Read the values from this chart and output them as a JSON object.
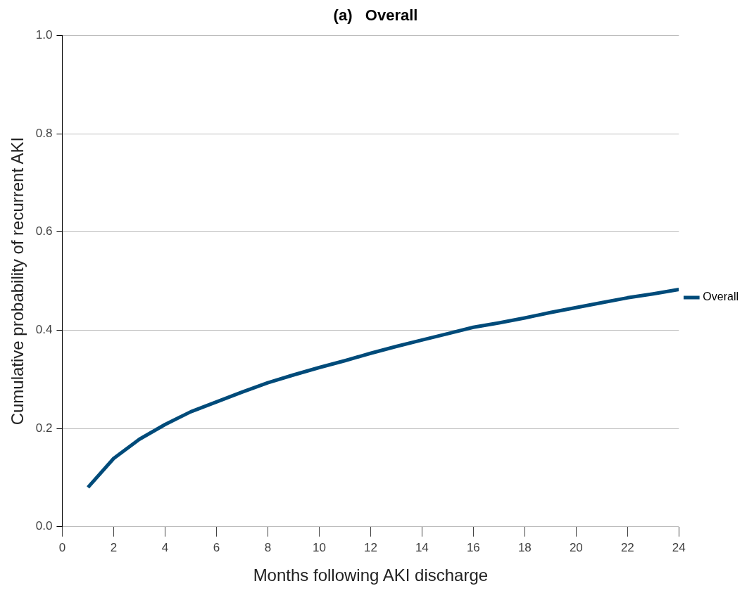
{
  "chart_data": {
    "type": "line",
    "title": "(a)   Overall",
    "xlabel": "Months following AKI discharge",
    "ylabel": "Cumulative probability of recurrent AKI",
    "x": [
      1,
      2,
      3,
      4,
      5,
      6,
      7,
      8,
      9,
      10,
      11,
      12,
      13,
      14,
      15,
      16,
      17,
      18,
      19,
      20,
      21,
      22,
      23,
      24
    ],
    "series": [
      {
        "name": "Overall",
        "color": "#004b7a",
        "values": [
          0.08,
          0.139,
          0.178,
          0.208,
          0.234,
          0.254,
          0.274,
          0.293,
          0.309,
          0.324,
          0.338,
          0.353,
          0.367,
          0.38,
          0.393,
          0.406,
          0.415,
          0.425,
          0.436,
          0.446,
          0.456,
          0.466,
          0.474,
          0.483
        ]
      }
    ],
    "xlim": [
      0,
      24
    ],
    "xticks": [
      0,
      2,
      4,
      6,
      8,
      10,
      12,
      14,
      16,
      18,
      20,
      22,
      24
    ],
    "ylim": [
      0,
      1
    ],
    "yticks": [
      {
        "value": 0,
        "label": "0.0"
      },
      {
        "value": 0.2,
        "label": "0.2"
      },
      {
        "value": 0.4,
        "label": "0.4"
      },
      {
        "value": 0.6,
        "label": "0.6"
      },
      {
        "value": 0.8,
        "label": "0.8"
      },
      {
        "value": 1,
        "label": "1.0"
      }
    ],
    "grid": "y",
    "legend": "right",
    "marker": "none",
    "line_style": "solid"
  }
}
